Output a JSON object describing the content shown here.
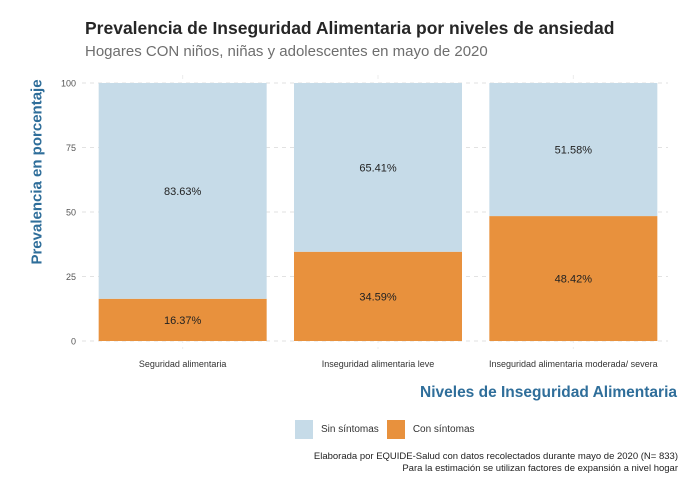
{
  "chart_data": {
    "type": "bar",
    "stacked": true,
    "title": "Prevalencia de Inseguridad Alimentaria por niveles de ansiedad",
    "subtitle": "Hogares CON niños, niñas y adolescentes en mayo de 2020",
    "xlabel": "Niveles de Inseguridad Alimentaria",
    "ylabel": "Prevalencia en porcentaje",
    "ylim": [
      0,
      100
    ],
    "yticks": [
      0,
      25,
      50,
      75,
      100
    ],
    "grid": true,
    "legend_position": "bottom",
    "categories": [
      "Seguridad alimentaria",
      "Inseguridad alimentaria leve",
      "Inseguridad alimentaria moderada/ severa"
    ],
    "series": [
      {
        "name": "Con síntomas",
        "color": "#e8913d",
        "values": [
          16.37,
          34.59,
          48.42
        ],
        "labels": [
          "16.37%",
          "34.59%",
          "48.42%"
        ]
      },
      {
        "name": "Sin síntomas",
        "color": "#c6dbe8",
        "values": [
          83.63,
          65.41,
          51.58
        ],
        "labels": [
          "83.63%",
          "65.41%",
          "51.58%"
        ]
      }
    ]
  },
  "legend": {
    "items": [
      {
        "label": "Sin síntomas",
        "color": "#c6dbe8"
      },
      {
        "label": "Con síntomas",
        "color": "#e8913d"
      }
    ]
  },
  "caption": {
    "line1": "Elaborada por EQUIDE-Salud con datos recolectados durante mayo de 2020 (N= 833)",
    "line2": "Para la estimación se utilizan factores de expansión a nivel hogar"
  }
}
